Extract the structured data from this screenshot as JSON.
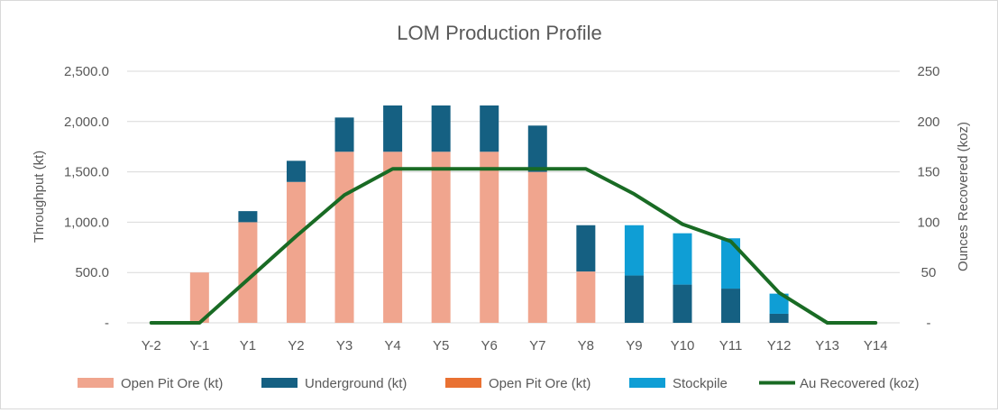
{
  "chart_data": {
    "type": "bar",
    "title": "LOM Production Profile",
    "categories": [
      "Y-2",
      "Y-1",
      "Y1",
      "Y2",
      "Y3",
      "Y4",
      "Y5",
      "Y6",
      "Y7",
      "Y8",
      "Y9",
      "Y10",
      "Y11",
      "Y12",
      "Y13",
      "Y14"
    ],
    "y_left": {
      "label": "Throughput (kt)",
      "lim": [
        0,
        2500
      ],
      "ticks": [
        0,
        500,
        1000,
        1500,
        2000,
        2500
      ],
      "tick_labels": [
        "-",
        "500.0",
        "1,000.0",
        "1,500.0",
        "2,000.0",
        "2,500.0"
      ]
    },
    "y_right": {
      "label": "Ounces Recovered (koz)",
      "lim": [
        0,
        250
      ],
      "ticks": [
        0,
        50,
        100,
        150,
        200,
        250
      ],
      "tick_labels": [
        "-",
        "50",
        "100",
        "150",
        "200",
        "250"
      ]
    },
    "gridlines": true,
    "legend_position": "bottom",
    "series": [
      {
        "name": "Open Pit Ore (kt)",
        "kind": "bar",
        "axis": "left",
        "color": "#f0a58e",
        "values": [
          0,
          500,
          1000,
          1400,
          1700,
          1700,
          1700,
          1700,
          1500,
          510,
          0,
          0,
          0,
          0,
          0,
          0
        ]
      },
      {
        "name": "Underground (kt)",
        "kind": "bar",
        "axis": "left",
        "color": "#156082",
        "values": [
          0,
          0,
          110,
          210,
          340,
          460,
          460,
          460,
          460,
          460,
          470,
          380,
          340,
          90,
          0,
          0
        ]
      },
      {
        "name": "Open Pit Ore (kt)",
        "kind": "bar",
        "axis": "left",
        "color": "#e97132",
        "values": [
          0,
          0,
          0,
          0,
          0,
          0,
          0,
          0,
          0,
          0,
          0,
          0,
          0,
          0,
          0,
          0
        ]
      },
      {
        "name": "Stockpile",
        "kind": "bar",
        "axis": "left",
        "color": "#0f9ed5",
        "values": [
          0,
          0,
          0,
          0,
          0,
          0,
          0,
          0,
          0,
          0,
          500,
          510,
          500,
          200,
          0,
          0
        ]
      },
      {
        "name": "Au Recovered (koz)",
        "kind": "line",
        "axis": "right",
        "color": "#196b24",
        "values": [
          0,
          0,
          43,
          86,
          127,
          153,
          153,
          153,
          153,
          153,
          128,
          98,
          81,
          30,
          0,
          0
        ]
      }
    ]
  }
}
